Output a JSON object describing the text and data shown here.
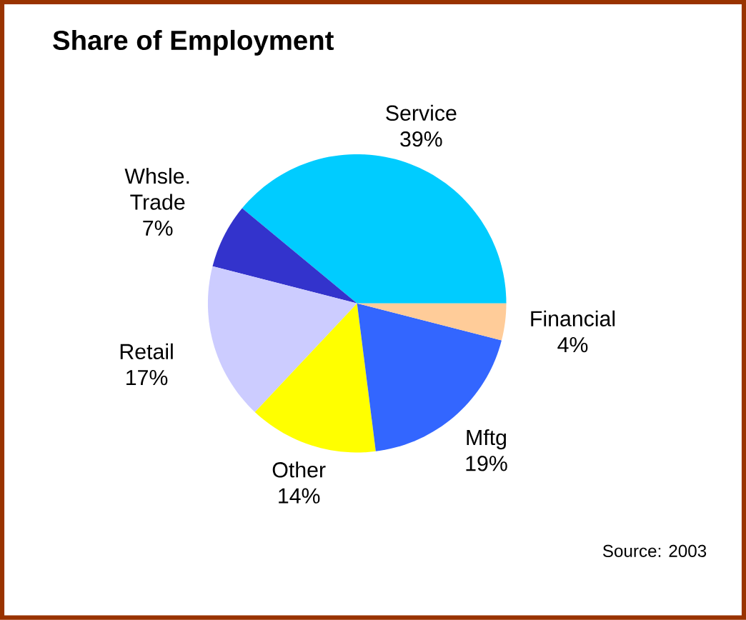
{
  "chart_data": {
    "type": "pie",
    "title": "Share of Employment",
    "categories": [
      "Service",
      "Whsle. Trade",
      "Retail",
      "Other",
      "Mftg",
      "Financial"
    ],
    "values": [
      39,
      7,
      17,
      14,
      19,
      4
    ],
    "value_labels": [
      "39%",
      "7%",
      "17%",
      "14%",
      "19%",
      "4%"
    ],
    "colors": [
      "#00ccff",
      "#3333cc",
      "#ccccff",
      "#ffff00",
      "#3366ff",
      "#ffcc99"
    ],
    "annotations": [
      "Source: 2003"
    ]
  }
}
